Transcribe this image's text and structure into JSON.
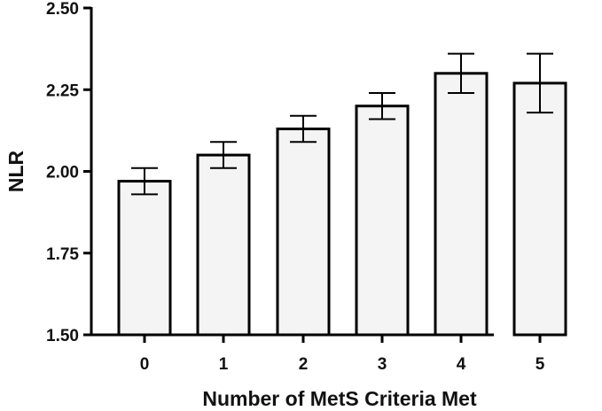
{
  "chart_data": {
    "type": "bar",
    "title": "",
    "xlabel": "Number of MetS Criteria Met",
    "ylabel": "NLR",
    "categories": [
      "0",
      "1",
      "2",
      "3",
      "4",
      "5"
    ],
    "values": [
      1.97,
      2.05,
      2.13,
      2.2,
      2.3,
      2.27
    ],
    "error_low": [
      1.93,
      2.01,
      2.09,
      2.16,
      2.24,
      2.18
    ],
    "error_high": [
      2.01,
      2.09,
      2.17,
      2.24,
      2.36,
      2.36
    ],
    "ylim": [
      1.5,
      2.5
    ],
    "yticks": [
      "1.50",
      "1.75",
      "2.00",
      "2.25",
      "2.50"
    ],
    "grid": false,
    "colors": {
      "bar_fill": "#f4f4f4",
      "bar_stroke": "#000000"
    }
  }
}
